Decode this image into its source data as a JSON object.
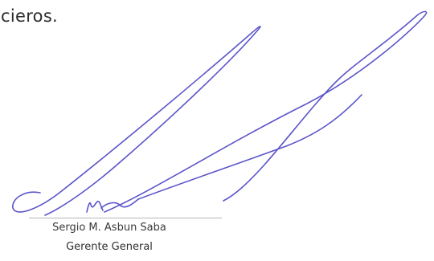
{
  "document": {
    "body_fragment": "cieros."
  },
  "signature_block": {
    "signer_name": "Sergio M. Asbun Saba",
    "signer_title": "Gerente General",
    "ink_color": "#5b55c9"
  }
}
